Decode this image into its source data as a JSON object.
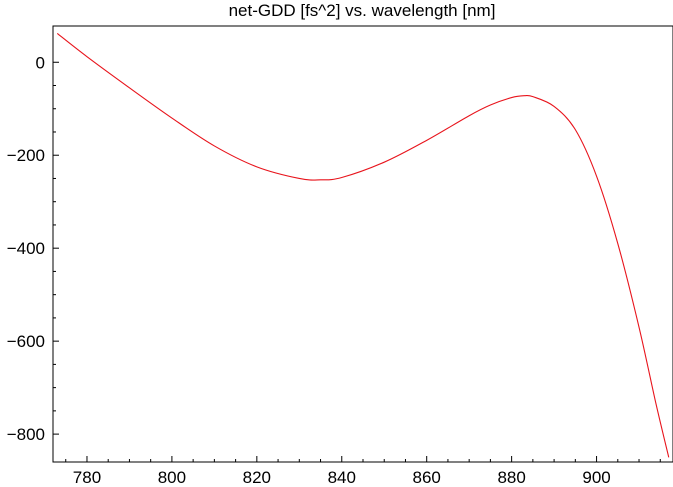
{
  "chart_data": {
    "type": "line",
    "title": "net-GDD [fs^2] vs. wavelength [nm]",
    "xlabel": "",
    "ylabel": "",
    "xlim": [
      772,
      918
    ],
    "ylim": [
      -860,
      78
    ],
    "grid": false,
    "x_ticks": [
      780,
      800,
      820,
      840,
      860,
      880,
      900
    ],
    "y_ticks": [
      0,
      -200,
      -400,
      -600,
      -800
    ],
    "x_tick_labels": [
      "780",
      "800",
      "820",
      "840",
      "860",
      "880",
      "900"
    ],
    "y_tick_labels": [
      "0",
      "−200",
      "−400",
      "−600",
      "−800"
    ],
    "series": [
      {
        "color": "#e8141c",
        "x": [
          773,
          780,
          790,
          800,
          810,
          820,
          830,
          835,
          840,
          850,
          860,
          870,
          875,
          880,
          883,
          885,
          890,
          895,
          900,
          905,
          910,
          914,
          917
        ],
        "y": [
          62,
          12,
          -55,
          -120,
          -180,
          -225,
          -250,
          -253,
          -248,
          -215,
          -168,
          -115,
          -92,
          -76,
          -72,
          -74,
          -95,
          -145,
          -245,
          -390,
          -570,
          -735,
          -850
        ]
      }
    ]
  }
}
